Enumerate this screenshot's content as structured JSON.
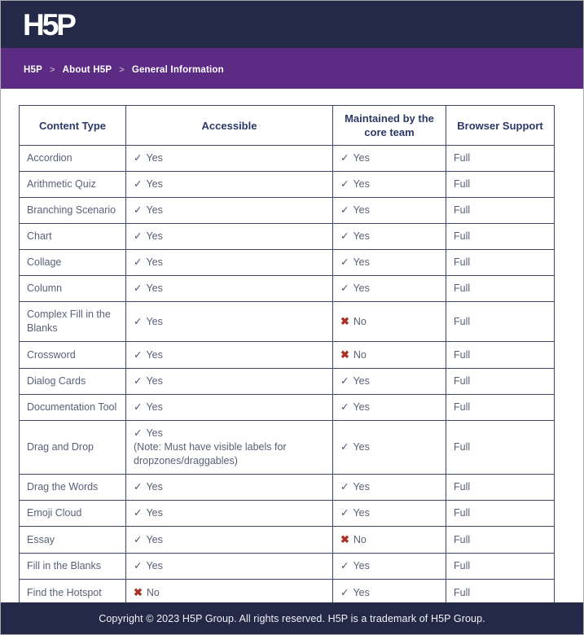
{
  "colors": {
    "header_bg": "#232946",
    "breadcrumb_bg": "#5c2b84",
    "table_border": "#3e4566",
    "header_text": "#2c3966",
    "cell_text": "#5a6177",
    "no_mark_red": "#a93226",
    "footer_bg": "#232946"
  },
  "header": {
    "logo_text": "H5P"
  },
  "breadcrumb": {
    "separator": ">",
    "items": [
      {
        "label": "H5P"
      },
      {
        "label": "About H5P"
      },
      {
        "label": "General Information"
      }
    ]
  },
  "table": {
    "headers": [
      "Content Type",
      "Accessible",
      "Maintained by the core team",
      "Browser Support"
    ],
    "marks": {
      "yes": "✓",
      "no": "✖"
    },
    "mark_labels": {
      "yes": "Yes",
      "no": "No"
    },
    "rows": [
      {
        "content_type": "Accordion",
        "accessible": {
          "mark": "yes"
        },
        "maintained": {
          "mark": "yes"
        },
        "browser_support": "Full"
      },
      {
        "content_type": "Arithmetic Quiz",
        "accessible": {
          "mark": "yes"
        },
        "maintained": {
          "mark": "yes"
        },
        "browser_support": "Full"
      },
      {
        "content_type": "Branching Scenario",
        "accessible": {
          "mark": "yes"
        },
        "maintained": {
          "mark": "yes"
        },
        "browser_support": "Full"
      },
      {
        "content_type": "Chart",
        "accessible": {
          "mark": "yes"
        },
        "maintained": {
          "mark": "yes"
        },
        "browser_support": "Full"
      },
      {
        "content_type": "Collage",
        "accessible": {
          "mark": "yes"
        },
        "maintained": {
          "mark": "yes"
        },
        "browser_support": "Full"
      },
      {
        "content_type": "Column",
        "accessible": {
          "mark": "yes"
        },
        "maintained": {
          "mark": "yes"
        },
        "browser_support": "Full"
      },
      {
        "content_type": "Complex Fill in the Blanks",
        "accessible": {
          "mark": "yes"
        },
        "maintained": {
          "mark": "no"
        },
        "browser_support": "Full"
      },
      {
        "content_type": "Crossword",
        "accessible": {
          "mark": "yes"
        },
        "maintained": {
          "mark": "no"
        },
        "browser_support": "Full"
      },
      {
        "content_type": "Dialog Cards",
        "accessible": {
          "mark": "yes"
        },
        "maintained": {
          "mark": "yes"
        },
        "browser_support": "Full"
      },
      {
        "content_type": "Documentation Tool",
        "accessible": {
          "mark": "yes"
        },
        "maintained": {
          "mark": "yes"
        },
        "browser_support": "Full"
      },
      {
        "content_type": "Drag and Drop",
        "accessible": {
          "mark": "yes",
          "note": "(Note: Must have visible labels for dropzones/draggables)"
        },
        "maintained": {
          "mark": "yes"
        },
        "browser_support": "Full"
      },
      {
        "content_type": "Drag the Words",
        "accessible": {
          "mark": "yes"
        },
        "maintained": {
          "mark": "yes"
        },
        "browser_support": "Full"
      },
      {
        "content_type": "Emoji Cloud",
        "accessible": {
          "mark": "yes"
        },
        "maintained": {
          "mark": "yes"
        },
        "browser_support": "Full"
      },
      {
        "content_type": "Essay",
        "accessible": {
          "mark": "yes"
        },
        "maintained": {
          "mark": "no"
        },
        "browser_support": "Full"
      },
      {
        "content_type": "Fill in the Blanks",
        "accessible": {
          "mark": "yes"
        },
        "maintained": {
          "mark": "yes"
        },
        "browser_support": "Full"
      },
      {
        "content_type": "Find the Hotspot",
        "accessible": {
          "mark": "no"
        },
        "maintained": {
          "mark": "yes"
        },
        "browser_support": "Full"
      }
    ]
  },
  "footer": {
    "copyright": "Copyright © 2023 H5P Group. All rights reserved. H5P is a trademark of H5P Group."
  }
}
